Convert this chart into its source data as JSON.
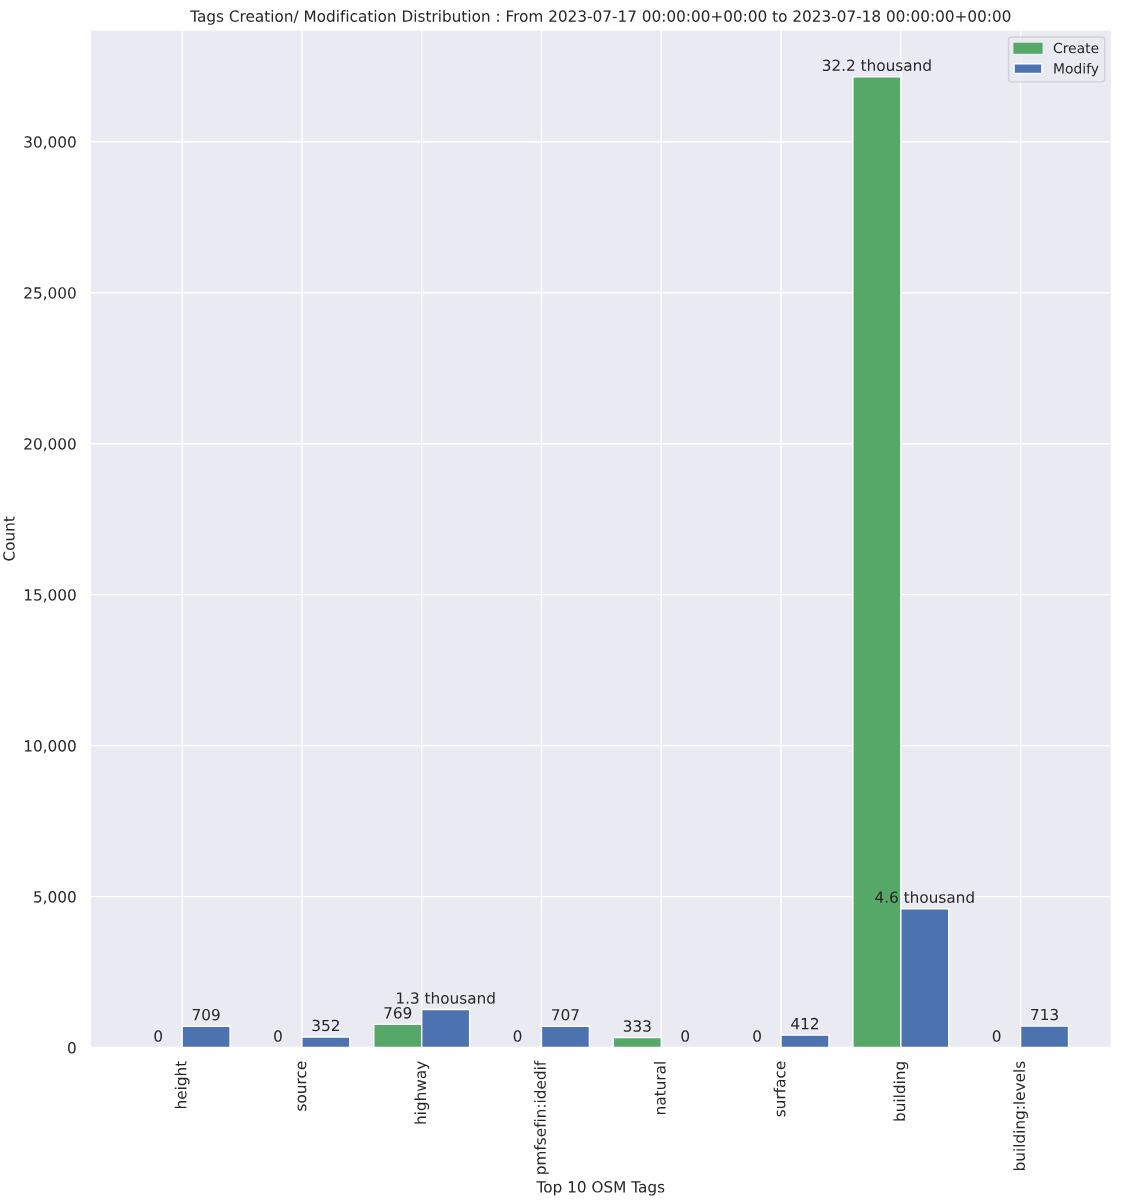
{
  "chart_data": {
    "type": "bar",
    "title": "Tags Creation/ Modification Distribution : From 2023-07-17 00:00:00+00:00 to 2023-07-18 00:00:00+00:00",
    "xlabel": "Top 10 OSM Tags",
    "ylabel": "Count",
    "categories": [
      "height",
      "source",
      "highway",
      "pmfsefin:idedif",
      "natural",
      "surface",
      "building",
      "building:levels"
    ],
    "series": [
      {
        "name": "Create",
        "color": "#55a868",
        "values": [
          0,
          0,
          769,
          0,
          333,
          0,
          32150,
          0
        ],
        "value_labels": [
          "0",
          "0",
          "769",
          "0",
          "333",
          "0",
          "32.2 thousand",
          "0"
        ]
      },
      {
        "name": "Modify",
        "color": "#4c72b0",
        "values": [
          709,
          352,
          1260,
          707,
          0,
          412,
          4600,
          713
        ],
        "value_labels": [
          "709",
          "352",
          "1.3 thousand",
          "707",
          "0",
          "412",
          "4.6 thousand",
          "713"
        ]
      }
    ],
    "ylim": [
      0,
      33700
    ],
    "yticks": [
      {
        "value": 0,
        "label": "0"
      },
      {
        "value": 5000,
        "label": "5,000"
      },
      {
        "value": 10000,
        "label": "10,000"
      },
      {
        "value": 15000,
        "label": "15,000"
      },
      {
        "value": 20000,
        "label": "20,000"
      },
      {
        "value": 25000,
        "label": "25,000"
      },
      {
        "value": 30000,
        "label": "30,000"
      }
    ],
    "grid": true,
    "legend": "top right"
  }
}
